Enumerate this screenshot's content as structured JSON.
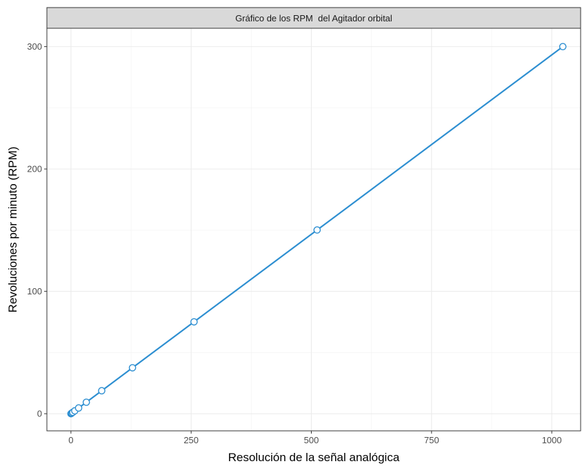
{
  "chart_data": {
    "type": "line",
    "title": "Gráfico de los RPM  del Agitador orbital",
    "xlabel": "Resolución de la señal analógica",
    "ylabel": "Revoluciones por minuto (RPM)",
    "xlim": [
      -50,
      1060
    ],
    "ylim": [
      -14,
      315
    ],
    "x_ticks": [
      0,
      250,
      500,
      750,
      1000
    ],
    "x_tick_labels": [
      "0",
      "250",
      "500",
      "750",
      "1000"
    ],
    "y_ticks": [
      0,
      100,
      200,
      300
    ],
    "y_tick_labels": [
      "0",
      "100",
      "200",
      "300"
    ],
    "grid": true,
    "legend": "none",
    "series": [
      {
        "color": "#2e8fd1",
        "marker": "open-circle",
        "x": [
          0,
          1,
          2,
          4,
          8,
          16,
          32,
          64,
          128,
          256,
          512,
          1023
        ],
        "y": [
          0,
          0.29,
          0.59,
          1.17,
          2.35,
          4.69,
          9.38,
          18.77,
          37.54,
          75.07,
          150.15,
          300
        ]
      }
    ]
  }
}
